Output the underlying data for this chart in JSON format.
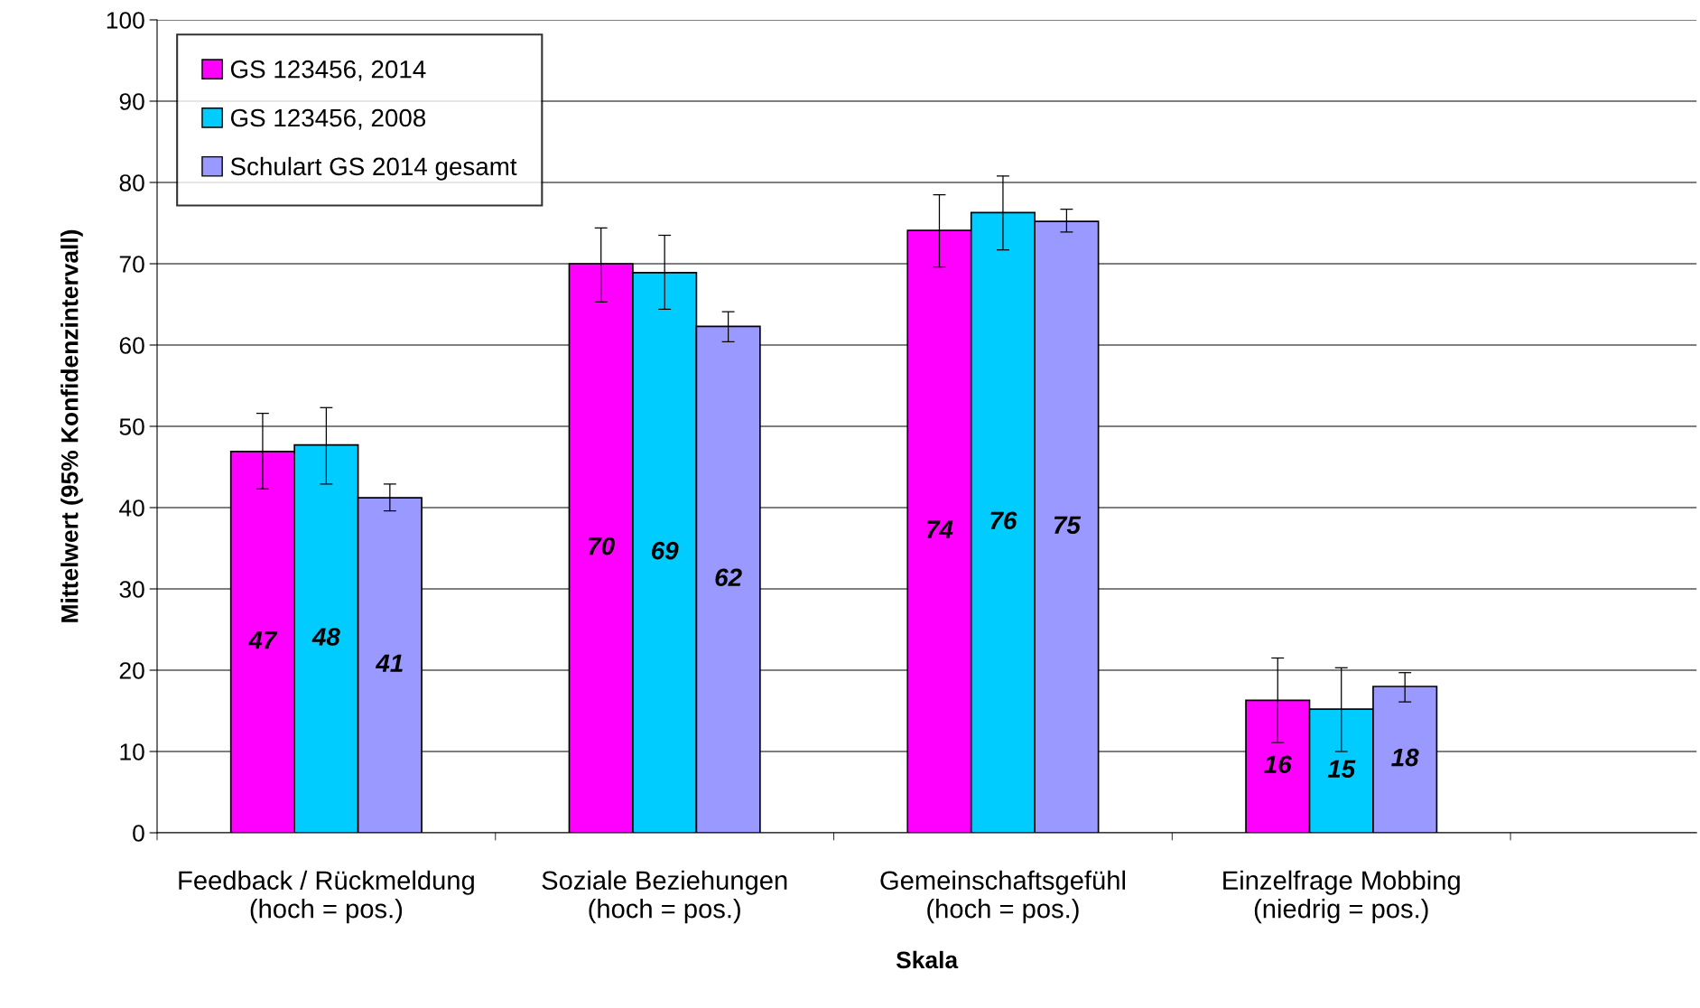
{
  "chart_data": {
    "type": "bar",
    "xlabel": "Skala",
    "ylabel": "Mittelwert (95% Konfidenzintervall)",
    "categories": [
      "Feedback / Rückmeldung\n(hoch = pos.)",
      "Soziale Beziehungen\n(hoch = pos.)",
      "Gemeinschaftsgefühl\n(hoch = pos.)",
      "Einzelfrage Mobbing\n(niedrig = pos.)"
    ],
    "series": [
      {
        "name": "GS 123456, 2014",
        "color": "#ff00ff",
        "values": [
          46.9,
          70.0,
          74.1,
          16.3
        ],
        "errors": [
          [
            42.3,
            51.6
          ],
          [
            65.3,
            74.4
          ],
          [
            69.6,
            78.5
          ],
          [
            11.1,
            21.5
          ]
        ],
        "value_labels": [
          "47",
          "70",
          "74",
          "16"
        ]
      },
      {
        "name": "GS 123456, 2008",
        "color": "#00ccff",
        "values": [
          47.7,
          68.9,
          76.3,
          15.2
        ],
        "errors": [
          [
            42.9,
            52.3
          ],
          [
            64.4,
            73.5
          ],
          [
            71.7,
            80.8
          ],
          [
            10.0,
            20.3
          ]
        ],
        "value_labels": [
          "48",
          "69",
          "76",
          "15"
        ]
      },
      {
        "name": "Schulart GS 2014 gesamt",
        "color": "#9999ff",
        "values": [
          41.2,
          62.3,
          75.2,
          18.0
        ],
        "errors": [
          [
            39.6,
            42.9
          ],
          [
            60.4,
            64.1
          ],
          [
            73.9,
            76.7
          ],
          [
            16.1,
            19.7
          ]
        ],
        "value_labels": [
          "41",
          "62",
          "75",
          "18"
        ]
      }
    ],
    "ylim": [
      0,
      100
    ],
    "yticks": [
      0,
      10,
      20,
      30,
      40,
      50,
      60,
      70,
      80,
      90,
      100
    ],
    "grid": "y",
    "legend": "top left"
  }
}
